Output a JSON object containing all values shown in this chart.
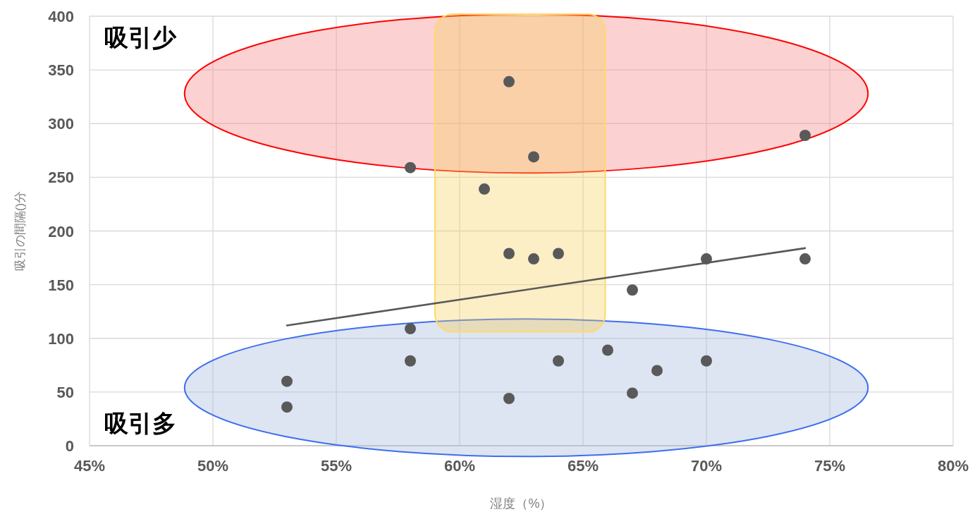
{
  "chart_data": {
    "type": "scatter",
    "xlabel": "湿度（%）",
    "ylabel": "吸引の間隔()分",
    "annotations": [
      "吸引少",
      "吸引多"
    ],
    "xlim": [
      45,
      80
    ],
    "xticks": [
      {
        "value": 45,
        "label": "45%"
      },
      {
        "value": 50,
        "label": "50%"
      },
      {
        "value": 55,
        "label": "55%"
      },
      {
        "value": 60,
        "label": "60%"
      },
      {
        "value": 65,
        "label": "65%"
      },
      {
        "value": 70,
        "label": "70%"
      },
      {
        "value": 75,
        "label": "75%"
      },
      {
        "value": 80,
        "label": "80%"
      }
    ],
    "ylim": [
      0,
      400
    ],
    "yticks": [
      0,
      50,
      100,
      150,
      200,
      250,
      300,
      350,
      400
    ],
    "grid": true,
    "marker": "circle",
    "series": [
      {
        "type": "scatter",
        "color": "#595959",
        "x": [
          53,
          53,
          58,
          58,
          58,
          61,
          62,
          62,
          62,
          63,
          63,
          64,
          64,
          66,
          67,
          67,
          68,
          70,
          70,
          74,
          74
        ],
        "values": [
          60,
          36,
          259,
          109,
          79,
          239,
          339,
          179,
          44,
          269,
          174,
          179,
          79,
          89,
          145,
          49,
          70,
          174,
          79,
          289,
          174
        ]
      },
      {
        "type": "line",
        "color": "#595959",
        "marker": "none",
        "x": [
          53,
          74
        ],
        "values": [
          112,
          184
        ]
      }
    ]
  }
}
